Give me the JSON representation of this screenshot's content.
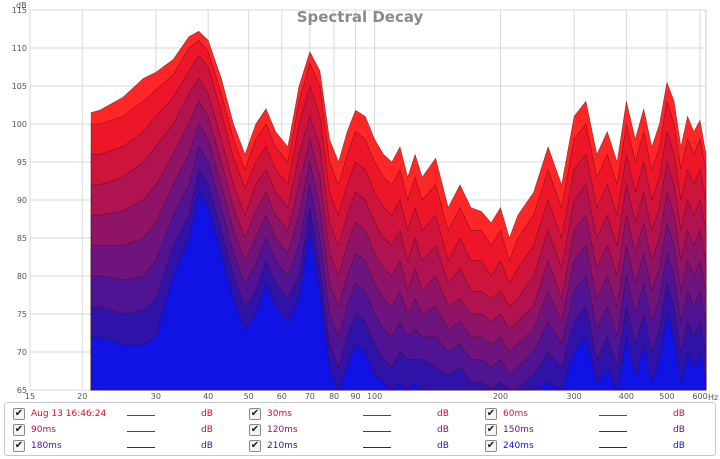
{
  "chart_data": {
    "type": "area",
    "title": "Spectral Decay",
    "ylabel": "dB",
    "xlabel": "Hz",
    "x_scale": "log",
    "xlim": [
      15,
      620
    ],
    "ylim": [
      65,
      115
    ],
    "x_ticks": [
      15,
      20,
      30,
      40,
      50,
      60,
      70,
      80,
      90,
      100,
      200,
      300,
      400,
      500,
      600
    ],
    "y_ticks": [
      65,
      70,
      75,
      80,
      85,
      90,
      95,
      100,
      105,
      110,
      115
    ],
    "grid": true,
    "x": [
      21,
      22,
      25,
      28,
      30,
      33,
      36,
      38,
      40,
      43,
      46,
      49,
      52,
      55,
      58,
      62,
      66,
      70,
      74,
      78,
      82,
      86,
      90,
      95,
      100,
      105,
      110,
      115,
      120,
      125,
      130,
      140,
      150,
      160,
      170,
      180,
      190,
      200,
      210,
      220,
      240,
      260,
      280,
      300,
      320,
      340,
      360,
      380,
      400,
      420,
      440,
      460,
      480,
      500,
      520,
      540,
      560,
      580,
      600,
      620
    ],
    "series": [
      {
        "name": "Aug 13 16:46:24",
        "color": "#ff1a1a",
        "values": [
          101.5,
          101.8,
          103.5,
          106.0,
          106.8,
          108.5,
          111.5,
          112.2,
          111.0,
          106.0,
          100.0,
          96.0,
          100.0,
          102.0,
          99.0,
          97.0,
          105.0,
          109.5,
          107.0,
          98.0,
          95.0,
          99.0,
          101.8,
          101.0,
          98.0,
          96.0,
          95.0,
          97.0,
          93.0,
          96.0,
          93.0,
          95.5,
          89.0,
          92.0,
          89.0,
          88.5,
          87.0,
          89.0,
          85.0,
          88.0,
          91.0,
          97.0,
          92.0,
          101.0,
          103.0,
          96.0,
          99.0,
          95.0,
          103.0,
          98.0,
          102.0,
          97.0,
          100.0,
          105.5,
          103.0,
          97.0,
          101.0,
          99.0,
          100.5,
          96.0
        ]
      },
      {
        "name": "30ms",
        "color": "#e8142a",
        "values": [
          100.0,
          100.0,
          101.0,
          103.0,
          104.5,
          106.5,
          110.0,
          111.0,
          109.5,
          104.0,
          98.0,
          94.0,
          98.0,
          100.0,
          97.0,
          95.0,
          103.0,
          108.0,
          105.0,
          95.0,
          92.0,
          96.0,
          99.0,
          98.0,
          95.0,
          93.0,
          92.0,
          94.0,
          90.0,
          93.0,
          90.0,
          92.0,
          86.0,
          89.0,
          86.0,
          86.0,
          84.0,
          86.0,
          82.0,
          85.0,
          88.0,
          94.0,
          89.0,
          98.0,
          100.0,
          93.0,
          96.0,
          92.0,
          100.0,
          95.0,
          99.0,
          94.0,
          97.0,
          103.0,
          100.0,
          94.0,
          98.0,
          96.0,
          98.0,
          94.0
        ]
      },
      {
        "name": "60ms",
        "color": "#c81440",
        "values": [
          96.0,
          96.0,
          97.0,
          99.0,
          101.0,
          103.5,
          107.0,
          109.0,
          107.5,
          101.5,
          95.5,
          91.5,
          95.0,
          97.0,
          94.0,
          92.0,
          100.0,
          105.0,
          101.0,
          91.0,
          88.0,
          92.0,
          95.0,
          94.0,
          91.0,
          89.0,
          88.0,
          90.0,
          86.0,
          89.0,
          86.0,
          88.0,
          82.0,
          85.0,
          82.0,
          82.0,
          80.0,
          82.0,
          79.0,
          81.0,
          84.0,
          90.0,
          85.0,
          94.0,
          96.0,
          89.0,
          92.0,
          88.0,
          96.0,
          91.0,
          95.0,
          90.0,
          93.0,
          99.0,
          96.0,
          90.0,
          94.0,
          92.0,
          94.0,
          90.0
        ]
      },
      {
        "name": "90ms",
        "color": "#a81456",
        "values": [
          92.0,
          92.0,
          93.0,
          95.0,
          97.0,
          100.0,
          104.0,
          106.0,
          104.0,
          98.0,
          92.0,
          88.0,
          92.0,
          94.0,
          91.0,
          89.0,
          96.0,
          101.0,
          97.0,
          87.0,
          84.0,
          88.0,
          91.0,
          90.0,
          87.0,
          85.0,
          84.0,
          86.0,
          82.0,
          85.0,
          82.0,
          84.0,
          79.0,
          81.0,
          78.0,
          78.0,
          77.0,
          78.0,
          76.0,
          77.0,
          80.0,
          86.0,
          81.0,
          90.0,
          92.0,
          85.0,
          88.0,
          84.0,
          92.0,
          87.0,
          91.0,
          86.0,
          89.0,
          95.0,
          92.0,
          86.0,
          90.0,
          88.0,
          90.0,
          86.0
        ]
      },
      {
        "name": "120ms",
        "color": "#88146c",
        "values": [
          88.0,
          88.0,
          88.5,
          90.0,
          92.0,
          96.0,
          100.0,
          103.0,
          101.0,
          95.0,
          89.0,
          85.0,
          88.5,
          91.0,
          88.0,
          86.0,
          92.0,
          98.0,
          93.0,
          83.0,
          80.0,
          84.0,
          87.0,
          86.0,
          83.0,
          81.0,
          80.0,
          82.0,
          78.0,
          81.0,
          78.0,
          80.0,
          76.0,
          77.0,
          75.0,
          75.0,
          74.0,
          75.0,
          73.0,
          74.0,
          76.0,
          82.0,
          77.0,
          86.0,
          88.0,
          81.0,
          84.0,
          80.0,
          88.0,
          83.0,
          87.0,
          82.0,
          85.0,
          91.0,
          88.0,
          82.0,
          86.0,
          84.0,
          86.0,
          82.0
        ]
      },
      {
        "name": "150ms",
        "color": "#681482",
        "values": [
          84.0,
          84.0,
          84.0,
          85.0,
          87.0,
          92.0,
          96.0,
          100.0,
          98.0,
          92.0,
          86.0,
          82.0,
          85.0,
          88.0,
          85.0,
          83.0,
          88.0,
          95.0,
          89.0,
          79.0,
          76.0,
          80.0,
          83.0,
          82.0,
          79.0,
          77.0,
          76.0,
          78.0,
          75.0,
          77.0,
          75.0,
          76.0,
          73.0,
          74.0,
          72.0,
          72.0,
          71.0,
          72.0,
          70.0,
          71.0,
          73.0,
          78.0,
          74.0,
          82.0,
          84.0,
          77.0,
          80.0,
          76.0,
          84.0,
          79.0,
          83.0,
          78.0,
          81.0,
          87.0,
          84.0,
          78.0,
          82.0,
          80.0,
          82.0,
          78.0
        ]
      },
      {
        "name": "180ms",
        "color": "#481498",
        "values": [
          80.0,
          80.0,
          79.5,
          80.0,
          82.0,
          88.0,
          92.0,
          97.0,
          95.0,
          89.0,
          83.0,
          79.0,
          81.5,
          85.0,
          82.0,
          80.0,
          84.0,
          92.0,
          85.0,
          75.0,
          72.0,
          76.0,
          79.0,
          78.0,
          75.0,
          73.0,
          72.0,
          74.0,
          72.0,
          73.0,
          72.0,
          72.0,
          70.0,
          71.0,
          69.0,
          69.0,
          68.0,
          69.0,
          67.0,
          68.0,
          70.0,
          74.0,
          71.0,
          78.0,
          80.0,
          73.0,
          76.0,
          72.0,
          80.0,
          75.0,
          79.0,
          74.0,
          77.0,
          83.0,
          80.0,
          74.0,
          78.0,
          76.0,
          78.0,
          74.0
        ]
      },
      {
        "name": "210ms",
        "color": "#2814ae",
        "values": [
          76.0,
          76.0,
          75.0,
          75.5,
          77.0,
          84.0,
          88.0,
          94.0,
          92.0,
          86.0,
          80.0,
          76.0,
          78.0,
          82.0,
          79.0,
          77.0,
          80.0,
          89.0,
          81.0,
          71.0,
          68.0,
          72.0,
          75.0,
          74.0,
          71.0,
          69.0,
          68.0,
          70.0,
          69.0,
          69.0,
          69.0,
          68.0,
          67.0,
          68.0,
          66.0,
          66.0,
          65.0,
          66.0,
          65.0,
          65.0,
          67.0,
          70.0,
          68.0,
          74.0,
          76.0,
          69.0,
          72.0,
          68.0,
          76.0,
          71.0,
          75.0,
          70.0,
          73.0,
          79.0,
          76.0,
          70.0,
          74.0,
          72.0,
          74.0,
          70.0
        ]
      },
      {
        "name": "240ms",
        "color": "#0a14f0",
        "values": [
          72.0,
          72.0,
          71.0,
          71.0,
          72.0,
          80.0,
          85.0,
          91.0,
          89.0,
          83.0,
          77.0,
          73.0,
          75.0,
          79.0,
          76.0,
          74.0,
          77.0,
          86.0,
          78.0,
          68.0,
          65.0,
          68.0,
          71.0,
          70.0,
          67.0,
          66.0,
          65.0,
          66.0,
          65.0,
          66.0,
          65.0,
          65.0,
          65.0,
          65.0,
          65.0,
          65.0,
          65.0,
          65.0,
          65.0,
          65.0,
          65.0,
          66.0,
          65.0,
          70.0,
          72.0,
          66.0,
          68.0,
          65.0,
          72.0,
          67.0,
          71.0,
          66.0,
          69.0,
          75.0,
          72.0,
          66.0,
          70.0,
          68.0,
          70.0,
          66.0
        ]
      }
    ]
  },
  "legend": {
    "unit": "dB",
    "items": [
      {
        "label": "Aug 13 16:46:24",
        "color": "#d01020",
        "checked": true
      },
      {
        "label": "30ms",
        "color": "#d01020",
        "checked": true
      },
      {
        "label": "60ms",
        "color": "#c81440",
        "checked": true
      },
      {
        "label": "90ms",
        "color": "#a81456",
        "checked": true
      },
      {
        "label": "120ms",
        "color": "#88146c",
        "checked": true
      },
      {
        "label": "150ms",
        "color": "#681482",
        "checked": true
      },
      {
        "label": "180ms",
        "color": "#481498",
        "checked": true
      },
      {
        "label": "210ms",
        "color": "#2814ae",
        "checked": true
      },
      {
        "label": "240ms",
        "color": "#0a14f0",
        "checked": true
      }
    ]
  }
}
